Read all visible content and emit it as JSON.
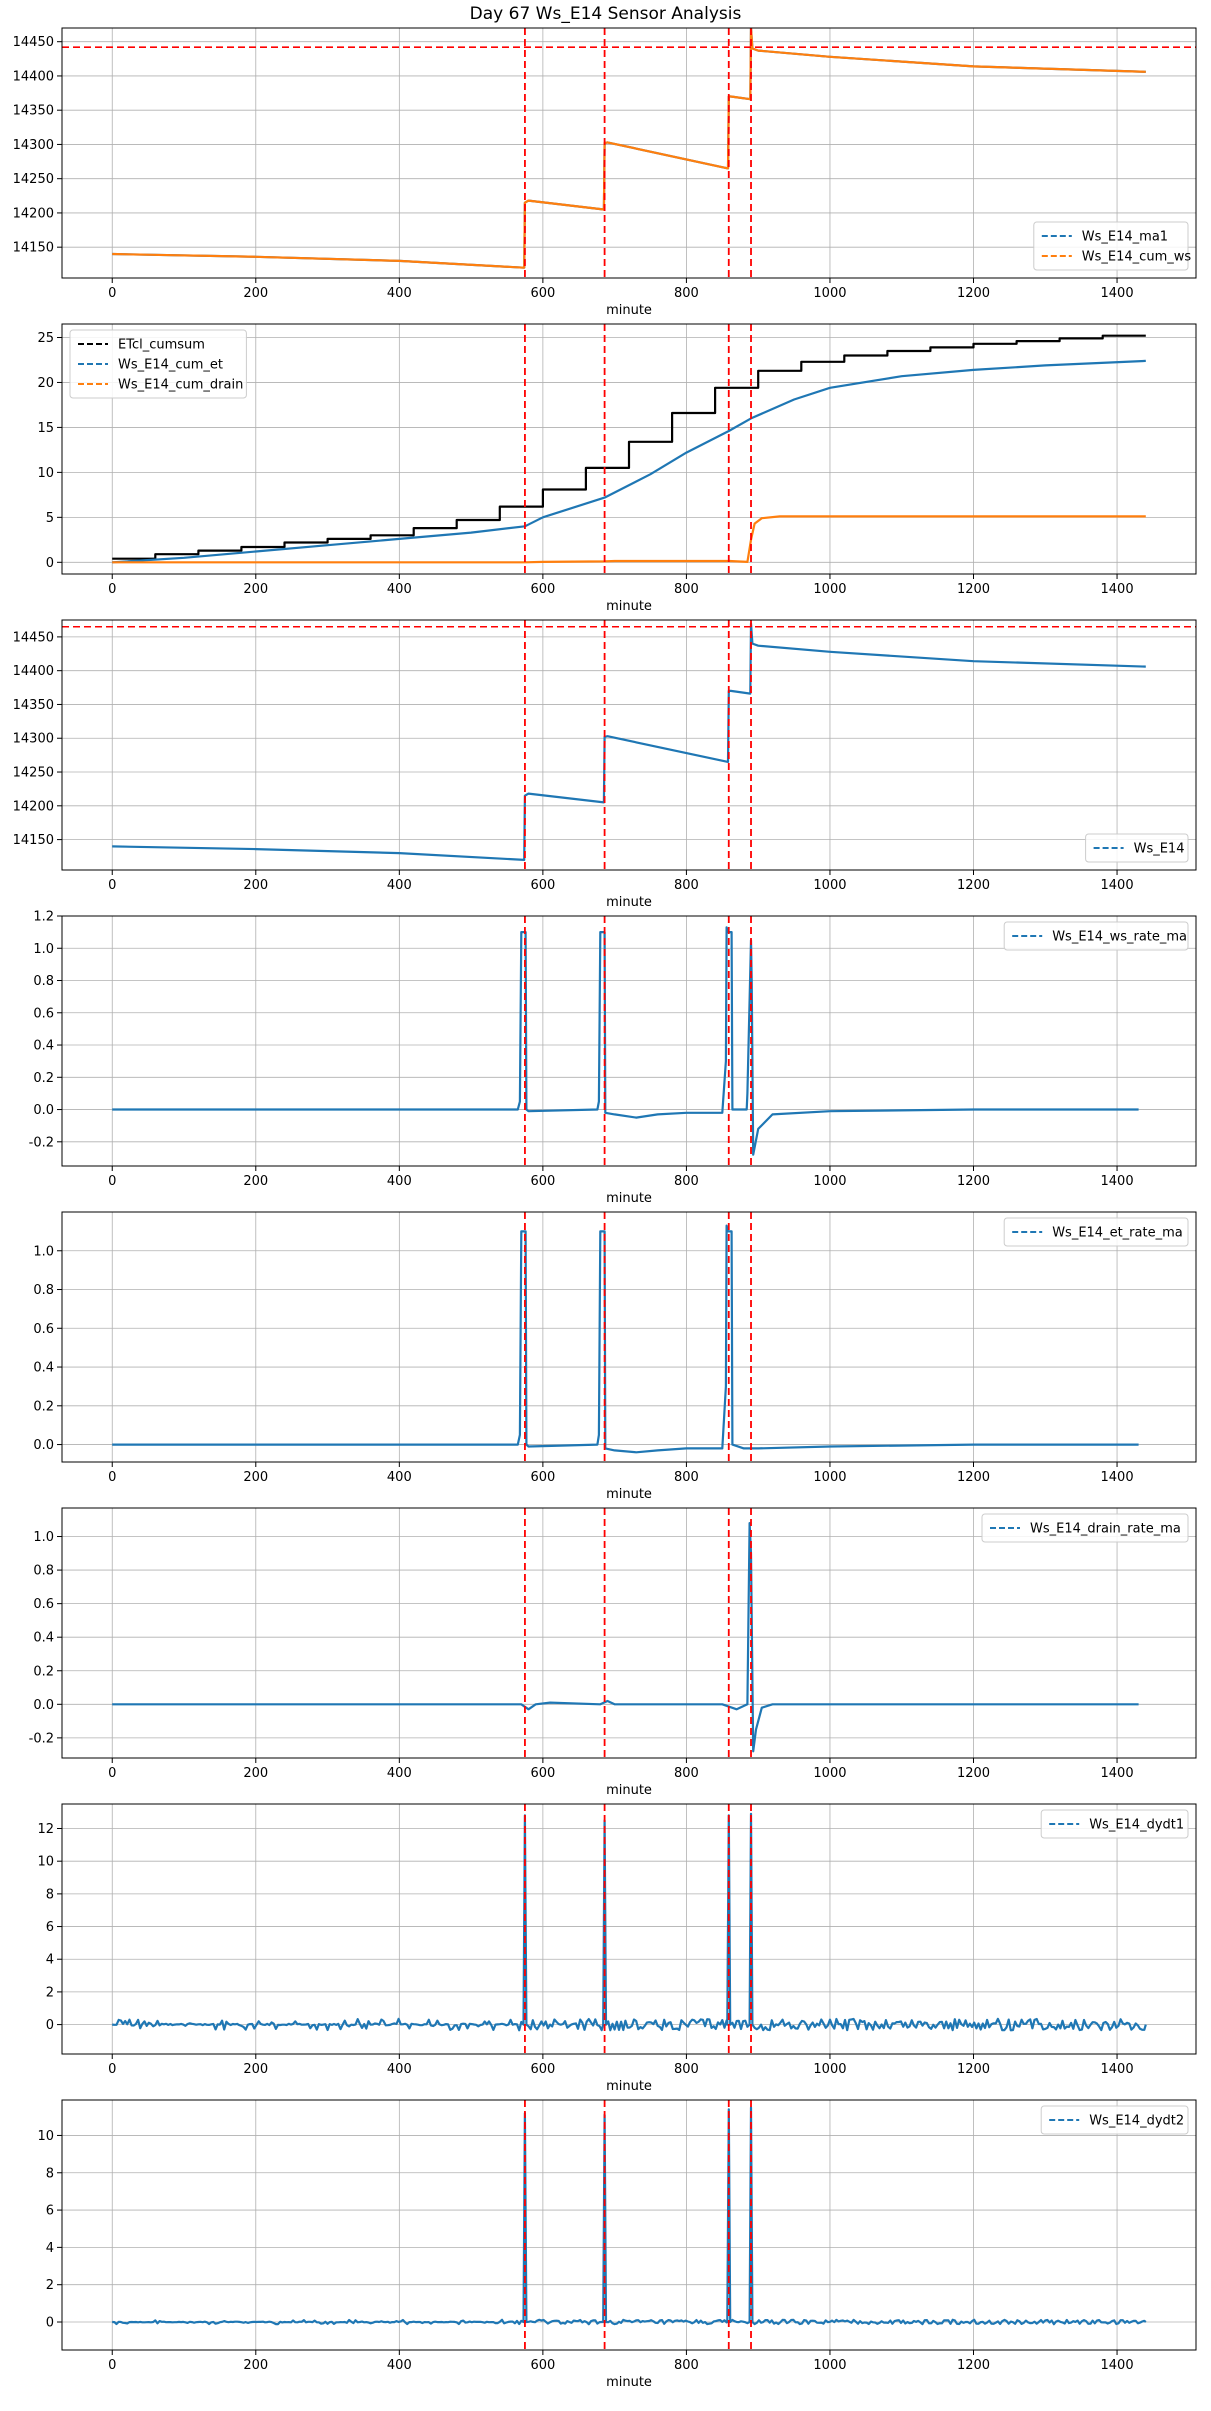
{
  "figure": {
    "title": "Day 67 Ws_E14 Sensor Analysis"
  },
  "colors": {
    "blue": "#1f77b4",
    "orange": "#ff7f0e",
    "black": "#000000",
    "event": "#ff0000",
    "grid": "#b0b0b0"
  },
  "events": [
    575,
    686,
    859,
    890
  ],
  "chart_data": [
    {
      "type": "line",
      "xlabel": "minute",
      "xlim": [
        -70,
        1510
      ],
      "xticks": [
        0,
        200,
        400,
        600,
        800,
        1000,
        1200,
        1400
      ],
      "ylim": [
        14105,
        14470
      ],
      "yticks": [
        14150,
        14200,
        14250,
        14300,
        14350,
        14400,
        14450
      ],
      "ytick_labels": [
        "14150",
        "14200",
        "14250",
        "14300",
        "14350",
        "14400",
        "14450"
      ],
      "hline": 14442,
      "legend": "lower-right",
      "grid": true,
      "series": [
        {
          "name": "Ws_E14_ma1",
          "color": "#1f77b4",
          "dash": true,
          "x": [
            0,
            200,
            400,
            574,
            575,
            580,
            685,
            686,
            690,
            858,
            859,
            862,
            889,
            890,
            892,
            900,
            1000,
            1200,
            1440
          ],
          "y": [
            14140,
            14136,
            14130,
            14120,
            14215,
            14218,
            14205,
            14302,
            14303,
            14265,
            14370,
            14370,
            14366,
            14470,
            14440,
            14437,
            14428,
            14414,
            14406
          ]
        },
        {
          "name": "Ws_E14_cum_ws",
          "color": "#ff7f0e",
          "dash": true,
          "x": [
            0,
            200,
            400,
            574,
            575,
            580,
            685,
            686,
            690,
            858,
            859,
            862,
            889,
            890,
            892,
            900,
            1000,
            1200,
            1440
          ],
          "y": [
            14140,
            14136,
            14130,
            14120,
            14215,
            14218,
            14205,
            14302,
            14303,
            14265,
            14370,
            14370,
            14366,
            14470,
            14440,
            14437,
            14428,
            14414,
            14406
          ]
        }
      ]
    },
    {
      "type": "line",
      "xlabel": "minute",
      "xlim": [
        -70,
        1510
      ],
      "xticks": [
        0,
        200,
        400,
        600,
        800,
        1000,
        1200,
        1400
      ],
      "ylim": [
        -1.3,
        26.5
      ],
      "yticks": [
        0,
        5,
        10,
        15,
        20,
        25
      ],
      "ytick_labels": [
        "0",
        "5",
        "10",
        "15",
        "20",
        "25"
      ],
      "legend": "upper-left",
      "grid": true,
      "series": [
        {
          "name": "ETcl_cumsum",
          "color": "#000000",
          "dash": true,
          "step": true,
          "x": [
            0,
            60,
            120,
            180,
            240,
            300,
            360,
            420,
            480,
            540,
            600,
            660,
            720,
            780,
            840,
            900,
            960,
            1020,
            1080,
            1140,
            1200,
            1260,
            1320,
            1380,
            1440
          ],
          "y": [
            0.4,
            0.9,
            1.3,
            1.7,
            2.2,
            2.6,
            3.0,
            3.8,
            4.7,
            6.2,
            8.1,
            10.5,
            13.4,
            16.6,
            19.4,
            21.3,
            22.3,
            23.0,
            23.5,
            23.9,
            24.3,
            24.6,
            24.9,
            25.2,
            25.2
          ]
        },
        {
          "name": "Ws_E14_cum_et",
          "color": "#1f77b4",
          "dash": true,
          "x": [
            0,
            100,
            200,
            300,
            400,
            500,
            575,
            600,
            686,
            750,
            800,
            859,
            890,
            950,
            1000,
            1100,
            1200,
            1300,
            1440
          ],
          "y": [
            0,
            0.5,
            1.2,
            1.9,
            2.6,
            3.3,
            4.0,
            5.0,
            7.2,
            9.8,
            12.2,
            14.6,
            16.0,
            18.1,
            19.4,
            20.7,
            21.4,
            21.9,
            22.4
          ]
        },
        {
          "name": "Ws_E14_cum_drain",
          "color": "#ff7f0e",
          "dash": true,
          "x": [
            0,
            575,
            600,
            686,
            700,
            860,
            885,
            890,
            895,
            905,
            930,
            1440
          ],
          "y": [
            0,
            0,
            0.05,
            0.1,
            0.15,
            0.15,
            0.05,
            2.5,
            4.3,
            4.9,
            5.1,
            5.1
          ]
        }
      ]
    },
    {
      "type": "line",
      "xlabel": "minute",
      "xlim": [
        -70,
        1510
      ],
      "xticks": [
        0,
        200,
        400,
        600,
        800,
        1000,
        1200,
        1400
      ],
      "ylim": [
        14105,
        14475
      ],
      "yticks": [
        14150,
        14200,
        14250,
        14300,
        14350,
        14400,
        14450
      ],
      "ytick_labels": [
        "14150",
        "14200",
        "14250",
        "14300",
        "14350",
        "14400",
        "14450"
      ],
      "hline": 14465,
      "legend": "lower-right",
      "grid": true,
      "series": [
        {
          "name": "Ws_E14",
          "color": "#1f77b4",
          "dash": true,
          "x": [
            0,
            200,
            400,
            574,
            575,
            580,
            685,
            686,
            690,
            858,
            859,
            862,
            889,
            890,
            892,
            900,
            1000,
            1200,
            1440
          ],
          "y": [
            14140,
            14136,
            14130,
            14120,
            14215,
            14218,
            14205,
            14302,
            14303,
            14265,
            14370,
            14370,
            14366,
            14470,
            14440,
            14437,
            14428,
            14414,
            14406
          ]
        }
      ]
    },
    {
      "type": "line",
      "xlabel": "minute",
      "xlim": [
        -70,
        1510
      ],
      "xticks": [
        0,
        200,
        400,
        600,
        800,
        1000,
        1200,
        1400
      ],
      "ylim": [
        -0.35,
        1.2
      ],
      "yticks": [
        -0.2,
        0.0,
        0.2,
        0.4,
        0.6,
        0.8,
        1.0,
        1.2
      ],
      "ytick_labels": [
        "-0.2",
        "0.0",
        "0.2",
        "0.4",
        "0.6",
        "0.8",
        "1.0",
        "1.2"
      ],
      "legend": "upper-right",
      "grid": true,
      "series": [
        {
          "name": "Ws_E14_ws_rate_ma",
          "color": "#1f77b4",
          "dash": true,
          "x": [
            0,
            565,
            568,
            570,
            576,
            577,
            580,
            676,
            678,
            680,
            686,
            687,
            700,
            730,
            760,
            800,
            850,
            855,
            856,
            858,
            863,
            864,
            870,
            884,
            885,
            890,
            891,
            893,
            900,
            920,
            1000,
            1200,
            1430
          ],
          "y": [
            0,
            0,
            0.05,
            1.1,
            1.1,
            0,
            -0.01,
            0,
            0.05,
            1.1,
            1.1,
            -0.02,
            -0.03,
            -0.05,
            -0.03,
            -0.02,
            -0.02,
            0.3,
            1.13,
            1.1,
            1.1,
            0,
            0,
            0,
            0.1,
            1.05,
            0.8,
            -0.28,
            -0.12,
            -0.03,
            -0.01,
            0,
            0
          ]
        }
      ]
    },
    {
      "type": "line",
      "xlabel": "minute",
      "xlim": [
        -70,
        1510
      ],
      "xticks": [
        0,
        200,
        400,
        600,
        800,
        1000,
        1200,
        1400
      ],
      "ylim": [
        -0.09,
        1.2
      ],
      "yticks": [
        0.0,
        0.2,
        0.4,
        0.6,
        0.8,
        1.0
      ],
      "ytick_labels": [
        "0.0",
        "0.2",
        "0.4",
        "0.6",
        "0.8",
        "1.0"
      ],
      "legend": "upper-right",
      "grid": true,
      "series": [
        {
          "name": "Ws_E14_et_rate_ma",
          "color": "#1f77b4",
          "dash": true,
          "x": [
            0,
            565,
            568,
            570,
            576,
            577,
            580,
            676,
            678,
            680,
            686,
            687,
            700,
            730,
            760,
            800,
            850,
            855,
            856,
            858,
            863,
            864,
            880,
            900,
            1000,
            1200,
            1430
          ],
          "y": [
            0,
            0,
            0.05,
            1.1,
            1.1,
            0,
            -0.01,
            0,
            0.05,
            1.1,
            1.1,
            -0.02,
            -0.03,
            -0.04,
            -0.03,
            -0.02,
            -0.02,
            0.3,
            1.13,
            1.1,
            1.1,
            0,
            -0.02,
            -0.02,
            -0.01,
            0,
            0
          ]
        }
      ]
    },
    {
      "type": "line",
      "xlabel": "minute",
      "xlim": [
        -70,
        1510
      ],
      "xticks": [
        0,
        200,
        400,
        600,
        800,
        1000,
        1200,
        1400
      ],
      "ylim": [
        -0.32,
        1.17
      ],
      "yticks": [
        -0.2,
        0.0,
        0.2,
        0.4,
        0.6,
        0.8,
        1.0
      ],
      "ytick_labels": [
        "-0.2",
        "0.0",
        "0.2",
        "0.4",
        "0.6",
        "0.8",
        "1.0"
      ],
      "legend": "upper-right",
      "grid": true,
      "series": [
        {
          "name": "Ws_E14_drain_rate_ma",
          "color": "#1f77b4",
          "dash": true,
          "x": [
            0,
            570,
            580,
            590,
            610,
            680,
            690,
            700,
            850,
            870,
            885,
            888,
            890,
            893,
            897,
            905,
            920,
            1430
          ],
          "y": [
            0,
            0,
            -0.03,
            0,
            0.01,
            0,
            0.02,
            0,
            0,
            -0.03,
            0,
            1.08,
            0.9,
            -0.28,
            -0.15,
            -0.02,
            0,
            0
          ]
        }
      ]
    },
    {
      "type": "line",
      "xlabel": "minute",
      "xlim": [
        -70,
        1510
      ],
      "xticks": [
        0,
        200,
        400,
        600,
        800,
        1000,
        1200,
        1400
      ],
      "ylim": [
        -1.8,
        13.5
      ],
      "yticks": [
        0,
        2,
        4,
        6,
        8,
        10,
        12
      ],
      "ytick_labels": [
        "0",
        "2",
        "4",
        "6",
        "8",
        "10",
        "12"
      ],
      "legend": "upper-right",
      "grid": true,
      "series": [
        {
          "name": "Ws_E14_dydt1",
          "color": "#1f77b4",
          "dash": true,
          "noise": 0.35,
          "x": [
            0,
            573,
            575,
            577,
            684,
            686,
            688,
            857,
            859,
            861,
            888,
            890,
            892,
            1440
          ],
          "y": [
            0,
            0,
            12.8,
            0,
            0,
            12.5,
            0,
            0,
            12.8,
            0,
            0,
            12.9,
            0,
            0
          ]
        }
      ]
    },
    {
      "type": "line",
      "xlabel": "minute",
      "xlim": [
        -70,
        1510
      ],
      "xticks": [
        0,
        200,
        400,
        600,
        800,
        1000,
        1200,
        1400
      ],
      "ylim": [
        -1.5,
        11.9
      ],
      "yticks": [
        0,
        2,
        4,
        6,
        8,
        10
      ],
      "ytick_labels": [
        "0",
        "2",
        "4",
        "6",
        "8",
        "10"
      ],
      "legend": "upper-right",
      "grid": true,
      "series": [
        {
          "name": "Ws_E14_dydt2",
          "color": "#1f77b4",
          "dash": true,
          "noise": 0.12,
          "x": [
            0,
            573,
            575,
            577,
            684,
            686,
            688,
            857,
            859,
            861,
            888,
            890,
            892,
            1440
          ],
          "y": [
            0,
            0,
            11.2,
            0,
            0,
            11.1,
            0,
            0,
            11.4,
            0,
            0,
            11.5,
            0,
            0
          ]
        }
      ]
    }
  ]
}
